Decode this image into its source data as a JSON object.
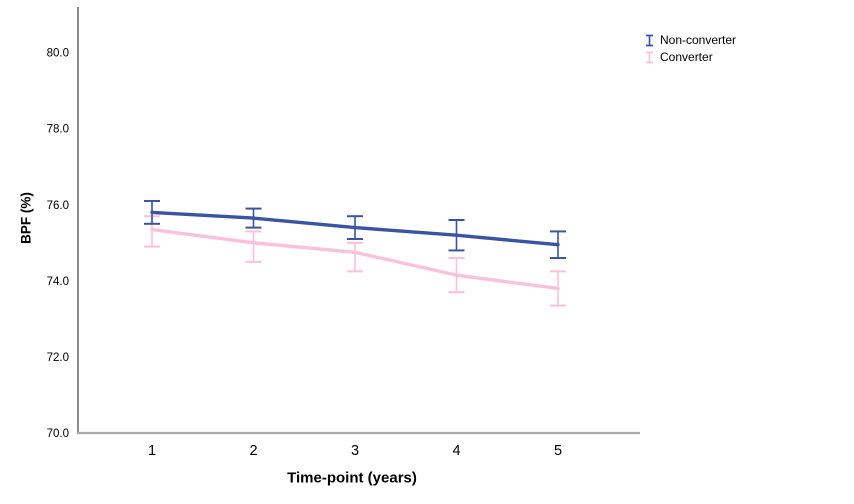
{
  "figure": {
    "background": "#ffffff",
    "axis_color": "#404040",
    "baseline_color": "#aaaaaa"
  },
  "chart_data": {
    "type": "line",
    "x": [
      1,
      2,
      3,
      4,
      5
    ],
    "xtick_labels": [
      "1",
      "2",
      "3",
      "4",
      "5"
    ],
    "yticks": [
      70.0,
      72.0,
      74.0,
      76.0,
      78.0,
      80.0
    ],
    "ytick_labels": [
      "70.0",
      "72.0",
      "74.0",
      "76.0",
      "78.0",
      "80.0"
    ],
    "ylim": [
      70.0,
      81.2
    ],
    "xlabel": "Time-point (years)",
    "ylabel": "BPF (%)",
    "grid": false,
    "legend_position": "top-right",
    "series": [
      {
        "name": "Non-converter",
        "color": "#3A53A3",
        "values": [
          75.8,
          75.65,
          75.4,
          75.2,
          74.95
        ],
        "error_low": [
          75.5,
          75.4,
          75.1,
          74.8,
          74.6
        ],
        "error_high": [
          76.1,
          75.9,
          75.7,
          75.6,
          75.3
        ]
      },
      {
        "name": "Converter",
        "color": "#FBC0DC",
        "values": [
          75.35,
          75.0,
          74.75,
          74.15,
          73.8
        ],
        "error_low": [
          74.9,
          74.5,
          74.25,
          73.7,
          73.35
        ],
        "error_high": [
          75.7,
          75.3,
          75.0,
          74.6,
          74.25
        ]
      }
    ]
  }
}
